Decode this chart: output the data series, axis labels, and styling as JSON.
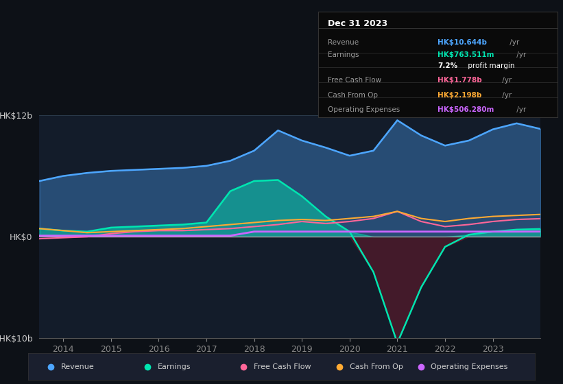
{
  "bg_color": "#0d1117",
  "plot_bg_color": "#131c2a",
  "title_box": {
    "date": "Dec 31 2023",
    "rows": [
      {
        "label": "Revenue",
        "value": "HK$10.644b",
        "color": "#4da6ff",
        "suffix": " /yr"
      },
      {
        "label": "Earnings",
        "value": "HK$763.511m",
        "color": "#00e5b0",
        "suffix": " /yr"
      },
      {
        "label": "",
        "value": "7.2%",
        "color": "#ffffff",
        "suffix": " profit margin"
      },
      {
        "label": "Free Cash Flow",
        "value": "HK$1.778b",
        "color": "#ff6699",
        "suffix": " /yr"
      },
      {
        "label": "Cash From Op",
        "value": "HK$2.198b",
        "color": "#ffaa33",
        "suffix": " /yr"
      },
      {
        "label": "Operating Expenses",
        "value": "HK$506.280m",
        "color": "#cc66ff",
        "suffix": " /yr"
      }
    ]
  },
  "years": [
    2013.5,
    2014,
    2014.5,
    2015,
    2015.5,
    2016,
    2016.5,
    2017,
    2017.5,
    2018,
    2018.5,
    2019,
    2019.5,
    2020,
    2020.5,
    2021,
    2021.5,
    2022,
    2022.5,
    2023,
    2023.5,
    2024
  ],
  "revenue": [
    5.5,
    6.0,
    6.3,
    6.5,
    6.6,
    6.7,
    6.8,
    7.0,
    7.5,
    8.5,
    10.5,
    9.5,
    8.8,
    8.0,
    8.5,
    11.5,
    10.0,
    9.0,
    9.5,
    10.6,
    11.2,
    10.644
  ],
  "earnings": [
    0.8,
    0.6,
    0.5,
    0.9,
    1.0,
    1.1,
    1.2,
    1.4,
    4.5,
    5.5,
    5.6,
    4.0,
    2.0,
    0.5,
    -3.5,
    -10.5,
    -5.0,
    -1.0,
    0.2,
    0.5,
    0.7,
    0.763
  ],
  "free_cash_flow": [
    -0.2,
    -0.1,
    0.0,
    0.3,
    0.5,
    0.6,
    0.6,
    0.7,
    0.8,
    1.0,
    1.2,
    1.5,
    1.3,
    1.5,
    1.8,
    2.5,
    1.5,
    1.0,
    1.2,
    1.5,
    1.7,
    1.778
  ],
  "cash_from_op": [
    0.8,
    0.6,
    0.4,
    0.5,
    0.6,
    0.7,
    0.8,
    1.0,
    1.2,
    1.4,
    1.6,
    1.7,
    1.6,
    1.8,
    2.0,
    2.5,
    1.8,
    1.5,
    1.8,
    2.0,
    2.1,
    2.198
  ],
  "op_expenses": [
    0.1,
    0.1,
    0.1,
    0.1,
    0.1,
    0.1,
    0.1,
    0.1,
    0.1,
    0.5,
    0.5,
    0.5,
    0.5,
    0.5,
    0.5,
    0.5,
    0.5,
    0.5,
    0.5,
    0.5,
    0.5,
    0.506
  ],
  "revenue_color": "#4da6ff",
  "earnings_color": "#00e5b0",
  "fcf_color": "#ff6699",
  "cfop_color": "#ffaa33",
  "opex_color": "#cc66ff",
  "ylim": [
    -10,
    12
  ],
  "yticks_labels": [
    "HK$12b",
    "HK$0",
    "-HK$10b"
  ],
  "yticks_values": [
    12,
    0,
    -10
  ],
  "xticks": [
    2014,
    2015,
    2016,
    2017,
    2018,
    2019,
    2020,
    2021,
    2022,
    2023
  ],
  "legend": [
    {
      "label": "Revenue",
      "color": "#4da6ff"
    },
    {
      "label": "Earnings",
      "color": "#00e5b0"
    },
    {
      "label": "Free Cash Flow",
      "color": "#ff6699"
    },
    {
      "label": "Cash From Op",
      "color": "#ffaa33"
    },
    {
      "label": "Operating Expenses",
      "color": "#cc66ff"
    }
  ]
}
